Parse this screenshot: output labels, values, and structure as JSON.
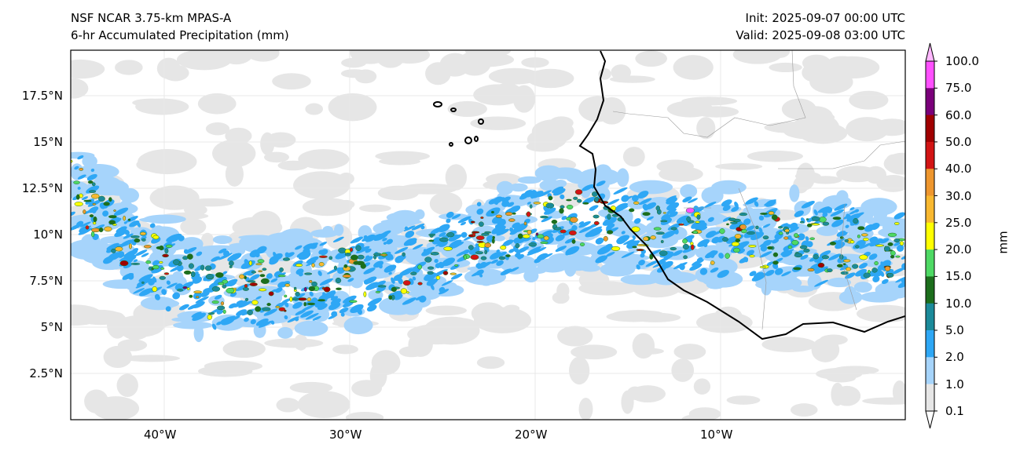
{
  "title": {
    "model": "NSF NCAR 3.75-km MPAS-A",
    "field": "6-hr Accumulated Precipitation (mm)",
    "init": "Init: 2025-09-07 00:00 UTC",
    "valid": "Valid: 2025-09-08 03:00 UTC"
  },
  "axes": {
    "lon_ticks": [
      "40°W",
      "30°W",
      "20°W",
      "10°W"
    ],
    "lat_ticks": [
      "17.5°N",
      "15°N",
      "12.5°N",
      "10°N",
      "7.5°N",
      "5°N",
      "2.5°N"
    ]
  },
  "colorbar": {
    "label": "mm",
    "ticks": [
      "100.0",
      "75.0",
      "60.0",
      "50.0",
      "40.0",
      "30.0",
      "25.0",
      "20.0",
      "15.0",
      "10.0",
      "5.0",
      "2.0",
      "1.0",
      "0.1"
    ],
    "colors": [
      "#e6e6e6",
      "#a6d4fb",
      "#2ea7f5",
      "#1b8a9a",
      "#1c6e1c",
      "#4ed964",
      "#ffff00",
      "#f8b830",
      "#ee962e",
      "#d21414",
      "#a00000",
      "#7a007a",
      "#ff50ff"
    ],
    "over_color": "#ffb8ff",
    "under_color": "#ffffff"
  }
}
